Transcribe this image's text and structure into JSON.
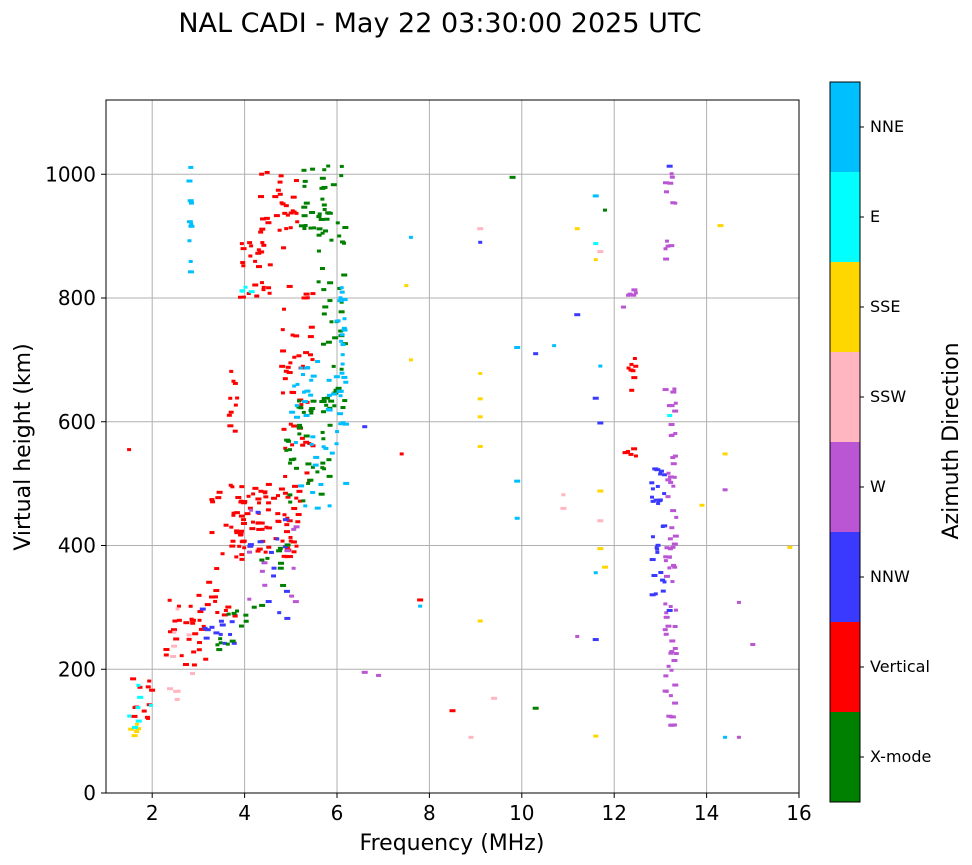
{
  "chart_data": {
    "type": "scatter",
    "title": "NAL CADI - May 22 03:30:00 2025 UTC",
    "xlabel": "Frequency (MHz)",
    "ylabel": "Virtual height (km)",
    "xlim": [
      1.0,
      16.0
    ],
    "ylim": [
      0,
      1120
    ],
    "xticks": [
      2,
      4,
      6,
      8,
      10,
      12,
      14,
      16
    ],
    "yticks": [
      0,
      200,
      400,
      600,
      800,
      1000
    ],
    "grid": true,
    "colorbar": {
      "label": "Azimuth Direction",
      "categories": [
        {
          "name": "X-mode",
          "color": "#008000"
        },
        {
          "name": "Vertical",
          "color": "#ff0000"
        },
        {
          "name": "NNW",
          "color": "#3a3aff"
        },
        {
          "name": "W",
          "color": "#ba55d3"
        },
        {
          "name": "SSW",
          "color": "#ffb6c1"
        },
        {
          "name": "SSE",
          "color": "#ffd700"
        },
        {
          "name": "E",
          "color": "#00ffff"
        },
        {
          "name": "NNE",
          "color": "#00bfff"
        }
      ]
    },
    "clusters": [
      {
        "category": "Vertical",
        "x": [
          1.5,
          2.0
        ],
        "y": [
          105,
          195
        ],
        "n": 12
      },
      {
        "category": "SSE",
        "x": [
          1.5,
          1.7
        ],
        "y": [
          90,
          120
        ],
        "n": 5
      },
      {
        "category": "E",
        "x": [
          1.5,
          2.0
        ],
        "y": [
          90,
          210
        ],
        "n": 7
      },
      {
        "category": "Vertical",
        "x": [
          2.3,
          3.2
        ],
        "y": [
          190,
          320
        ],
        "n": 28
      },
      {
        "category": "SSW",
        "x": [
          2.3,
          3.0
        ],
        "y": [
          150,
          300
        ],
        "n": 10
      },
      {
        "category": "NNW",
        "x": [
          2.8,
          3.8
        ],
        "y": [
          240,
          300
        ],
        "n": 14
      },
      {
        "category": "Vertical",
        "x": [
          3.2,
          4.0
        ],
        "y": [
          280,
          520
        ],
        "n": 40
      },
      {
        "category": "X-mode",
        "x": [
          3.4,
          4.3
        ],
        "y": [
          230,
          300
        ],
        "n": 12
      },
      {
        "category": "Vertical",
        "x": [
          3.9,
          5.2
        ],
        "y": [
          380,
          500
        ],
        "n": 70
      },
      {
        "category": "NNW",
        "x": [
          4.0,
          5.0
        ],
        "y": [
          280,
          460
        ],
        "n": 14
      },
      {
        "category": "W",
        "x": [
          4.0,
          5.2
        ],
        "y": [
          300,
          470
        ],
        "n": 12
      },
      {
        "category": "X-mode",
        "x": [
          4.2,
          5.0
        ],
        "y": [
          300,
          420
        ],
        "n": 10
      },
      {
        "category": "Vertical",
        "x": [
          3.6,
          4.0
        ],
        "y": [
          580,
          700
        ],
        "n": 10
      },
      {
        "category": "Vertical",
        "x": [
          3.9,
          4.6
        ],
        "y": [
          800,
          900
        ],
        "n": 25
      },
      {
        "category": "E",
        "x": [
          3.9,
          4.2
        ],
        "y": [
          790,
          840
        ],
        "n": 4
      },
      {
        "category": "Vertical",
        "x": [
          4.8,
          5.5
        ],
        "y": [
          500,
          820
        ],
        "n": 45
      },
      {
        "category": "Vertical",
        "x": [
          4.3,
          5.2
        ],
        "y": [
          880,
          1010
        ],
        "n": 30
      },
      {
        "category": "X-mode",
        "x": [
          4.9,
          5.9
        ],
        "y": [
          460,
          640
        ],
        "n": 40
      },
      {
        "category": "X-mode",
        "x": [
          5.6,
          6.2
        ],
        "y": [
          620,
          1020
        ],
        "n": 50
      },
      {
        "category": "NNE",
        "x": [
          5.0,
          6.2
        ],
        "y": [
          460,
          700
        ],
        "n": 40
      },
      {
        "category": "NNE",
        "x": [
          6.0,
          6.2
        ],
        "y": [
          580,
          820
        ],
        "n": 25
      },
      {
        "category": "X-mode",
        "x": [
          5.2,
          5.9
        ],
        "y": [
          900,
          1020
        ],
        "n": 25
      },
      {
        "category": "NNE",
        "x": [
          2.8,
          2.85
        ],
        "y": [
          840,
          1020
        ],
        "n": 10
      },
      {
        "category": "NNW",
        "x": [
          12.8,
          13.1
        ],
        "y": [
          320,
          530
        ],
        "n": 30
      },
      {
        "category": "W",
        "x": [
          13.1,
          13.35
        ],
        "y": [
          100,
          660
        ],
        "n": 70
      },
      {
        "category": "W",
        "x": [
          13.1,
          13.35
        ],
        "y": [
          850,
          1010
        ],
        "n": 12
      },
      {
        "category": "W",
        "x": [
          12.2,
          12.5
        ],
        "y": [
          780,
          820
        ],
        "n": 6
      },
      {
        "category": "Vertical",
        "x": [
          12.2,
          12.5
        ],
        "y": [
          650,
          710
        ],
        "n": 8
      },
      {
        "category": "Vertical",
        "x": [
          12.2,
          12.5
        ],
        "y": [
          540,
          580
        ],
        "n": 6
      }
    ],
    "points": [
      {
        "x": 1.5,
        "y": 555,
        "category": "Vertical"
      },
      {
        "x": 6.6,
        "y": 592,
        "category": "NNW"
      },
      {
        "x": 6.6,
        "y": 195,
        "category": "W"
      },
      {
        "x": 6.9,
        "y": 190,
        "category": "W"
      },
      {
        "x": 7.4,
        "y": 548,
        "category": "Vertical"
      },
      {
        "x": 7.5,
        "y": 820,
        "category": "SSE"
      },
      {
        "x": 7.6,
        "y": 700,
        "category": "SSE"
      },
      {
        "x": 7.6,
        "y": 898,
        "category": "NNE"
      },
      {
        "x": 7.8,
        "y": 312,
        "category": "Vertical"
      },
      {
        "x": 7.8,
        "y": 302,
        "category": "NNE"
      },
      {
        "x": 8.5,
        "y": 133,
        "category": "Vertical"
      },
      {
        "x": 8.9,
        "y": 90,
        "category": "SSW"
      },
      {
        "x": 9.1,
        "y": 912,
        "category": "SSW"
      },
      {
        "x": 9.1,
        "y": 890,
        "category": "NNW"
      },
      {
        "x": 9.1,
        "y": 678,
        "category": "SSE"
      },
      {
        "x": 9.1,
        "y": 637,
        "category": "SSE"
      },
      {
        "x": 9.1,
        "y": 608,
        "category": "SSE"
      },
      {
        "x": 9.1,
        "y": 560,
        "category": "SSE"
      },
      {
        "x": 9.1,
        "y": 278,
        "category": "SSE"
      },
      {
        "x": 9.4,
        "y": 153,
        "category": "SSW"
      },
      {
        "x": 9.9,
        "y": 720,
        "category": "NNE"
      },
      {
        "x": 9.9,
        "y": 504,
        "category": "NNE"
      },
      {
        "x": 9.9,
        "y": 444,
        "category": "NNE"
      },
      {
        "x": 10.3,
        "y": 710,
        "category": "NNW"
      },
      {
        "x": 10.3,
        "y": 137,
        "category": "X-mode"
      },
      {
        "x": 10.7,
        "y": 723,
        "category": "NNE"
      },
      {
        "x": 10.9,
        "y": 482,
        "category": "SSW"
      },
      {
        "x": 10.9,
        "y": 460,
        "category": "SSW"
      },
      {
        "x": 11.2,
        "y": 912,
        "category": "SSE"
      },
      {
        "x": 11.2,
        "y": 773,
        "category": "NNW"
      },
      {
        "x": 11.2,
        "y": 253,
        "category": "W"
      },
      {
        "x": 11.6,
        "y": 965,
        "category": "NNE"
      },
      {
        "x": 11.6,
        "y": 888,
        "category": "E"
      },
      {
        "x": 11.6,
        "y": 862,
        "category": "SSE"
      },
      {
        "x": 11.6,
        "y": 638,
        "category": "NNW"
      },
      {
        "x": 11.6,
        "y": 356,
        "category": "NNE"
      },
      {
        "x": 11.6,
        "y": 248,
        "category": "NNW"
      },
      {
        "x": 11.6,
        "y": 92,
        "category": "SSE"
      },
      {
        "x": 11.7,
        "y": 875,
        "category": "SSW"
      },
      {
        "x": 11.7,
        "y": 690,
        "category": "NNE"
      },
      {
        "x": 11.7,
        "y": 598,
        "category": "NNW"
      },
      {
        "x": 11.7,
        "y": 488,
        "category": "SSE"
      },
      {
        "x": 11.7,
        "y": 440,
        "category": "SSW"
      },
      {
        "x": 11.7,
        "y": 395,
        "category": "SSE"
      },
      {
        "x": 11.8,
        "y": 942,
        "category": "X-mode"
      },
      {
        "x": 11.8,
        "y": 365,
        "category": "SSE"
      },
      {
        "x": 9.8,
        "y": 995,
        "category": "X-mode"
      },
      {
        "x": 13.2,
        "y": 1013,
        "category": "NNW"
      },
      {
        "x": 13.2,
        "y": 610,
        "category": "E"
      },
      {
        "x": 13.2,
        "y": 295,
        "category": "NNW"
      },
      {
        "x": 13.9,
        "y": 465,
        "category": "SSE"
      },
      {
        "x": 14.3,
        "y": 917,
        "category": "SSE"
      },
      {
        "x": 14.4,
        "y": 548,
        "category": "SSE"
      },
      {
        "x": 14.4,
        "y": 490,
        "category": "W"
      },
      {
        "x": 14.4,
        "y": 90,
        "category": "NNE"
      },
      {
        "x": 14.7,
        "y": 90,
        "category": "W"
      },
      {
        "x": 14.7,
        "y": 308,
        "category": "W"
      },
      {
        "x": 15.0,
        "y": 240,
        "category": "W"
      },
      {
        "x": 15.8,
        "y": 397,
        "category": "SSE"
      }
    ]
  }
}
